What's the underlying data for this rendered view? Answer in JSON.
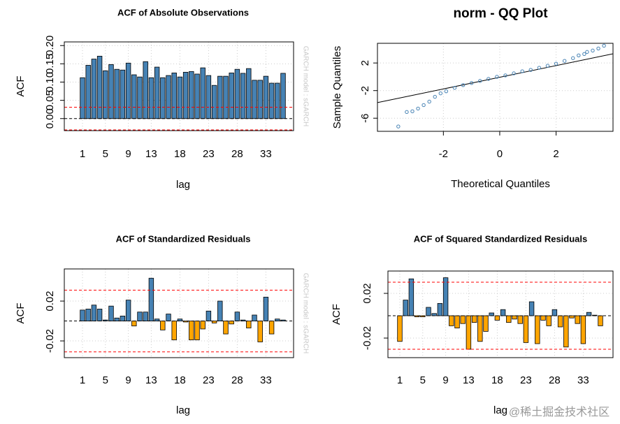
{
  "chart_data": [
    {
      "type": "bar",
      "title": "ACF of Absolute Observations",
      "subtitle": "GARCH model : sGARCH",
      "xlabel": "lag",
      "ylabel": "ACF",
      "categories": [
        "1",
        null,
        null,
        null,
        "5",
        null,
        null,
        null,
        "9",
        null,
        null,
        null,
        "13",
        null,
        null,
        null,
        null,
        "18",
        null,
        null,
        null,
        null,
        "23",
        null,
        null,
        null,
        null,
        "28",
        null,
        null,
        null,
        null,
        "33",
        null,
        null,
        null
      ],
      "values": [
        0.112,
        0.146,
        0.163,
        0.171,
        0.131,
        0.148,
        0.135,
        0.133,
        0.152,
        0.12,
        0.114,
        0.156,
        0.112,
        0.141,
        0.112,
        0.118,
        0.125,
        0.114,
        0.127,
        0.129,
        0.122,
        0.139,
        0.118,
        0.091,
        0.116,
        0.116,
        0.125,
        0.135,
        0.124,
        0.137,
        0.105,
        0.105,
        0.116,
        0.097,
        0.097,
        0.124
      ],
      "color": "#4682b4",
      "negative_color": "#ffa500",
      "conf_limits": [
        0.031,
        -0.031
      ],
      "conf_color": "#ff0000",
      "ylim": [
        -0.033,
        0.21
      ],
      "yticks": [
        {
          "value": 0,
          "label": "0.00"
        },
        0.05,
        {
          "value": 0.1,
          "label": "0.10"
        },
        0.15,
        {
          "value": 0.2,
          "label": "0.20"
        }
      ],
      "grid": true
    },
    {
      "type": "scatter",
      "title": "norm - QQ Plot",
      "xlabel": "Theoretical Quantiles",
      "ylabel": "Sample Quantiles",
      "x": [
        -3.6,
        -3.3,
        -3.1,
        -2.9,
        -2.7,
        -2.5,
        -2.3,
        -2.1,
        -1.9,
        -1.6,
        -1.3,
        -1,
        -0.7,
        -0.4,
        -0.1,
        0.2,
        0.5,
        0.8,
        1.1,
        1.4,
        1.7,
        2,
        2.3,
        2.6,
        2.8,
        3,
        3.1,
        3.3,
        3.5,
        3.7
      ],
      "y": [
        -7.2,
        -5.1,
        -5,
        -4.6,
        -4.1,
        -3.6,
        -2.9,
        -2.4,
        -2.1,
        -1.6,
        -1.2,
        -0.9,
        -0.6,
        -0.3,
        0,
        0.2,
        0.5,
        0.8,
        1,
        1.3,
        1.6,
        1.9,
        2.3,
        2.7,
        3.1,
        3.3,
        3.6,
        3.8,
        4.1,
        4.5
      ],
      "color": "#4682b4",
      "reference_line": {
        "x": [
          -4.34,
          4.02
        ],
        "y": [
          -3.74,
          3.33
        ]
      },
      "xlim": [
        -4.34,
        4.02
      ],
      "ylim": [
        -7.9,
        4.85
      ],
      "xticks": [
        -2,
        0,
        2
      ],
      "yticks": [
        -6,
        -2,
        2
      ],
      "grid": true
    },
    {
      "type": "bar",
      "title": "ACF of Standardized Residuals",
      "subtitle": "GARCH model : sGARCH",
      "xlabel": "lag",
      "ylabel": "ACF",
      "categories": [
        "1",
        null,
        null,
        null,
        "5",
        null,
        null,
        null,
        "9",
        null,
        null,
        null,
        "13",
        null,
        null,
        null,
        null,
        "18",
        null,
        null,
        null,
        null,
        "23",
        null,
        null,
        null,
        null,
        "28",
        null,
        null,
        null,
        null,
        "33",
        null,
        null,
        null
      ],
      "values": [
        0.011,
        0.012,
        0.016,
        0.012,
        0.001,
        0.015,
        0.003,
        0.005,
        0.021,
        -0.005,
        0.009,
        0.009,
        0.043,
        0.002,
        -0.009,
        0.007,
        -0.019,
        0.002,
        -0.001,
        -0.019,
        -0.019,
        -0.008,
        0.01,
        -0.002,
        0.02,
        -0.013,
        -0.003,
        0.009,
        0.001,
        -0.007,
        0.006,
        -0.021,
        0.024,
        -0.013,
        0.002,
        0.001
      ],
      "color": "#4682b4",
      "negative_color": "#ffa500",
      "conf_limits": [
        0.031,
        -0.031
      ],
      "conf_color": "#ff0000",
      "ylim": [
        -0.0368,
        0.0523
      ],
      "yticks": [
        -0.02,
        0.02
      ],
      "grid": true
    },
    {
      "type": "bar",
      "title": "ACF of Squared Standardized Residuals",
      "xlabel": "lag",
      "ylabel": "ACF",
      "categories": [
        "1",
        null,
        null,
        null,
        "5",
        null,
        null,
        null,
        "9",
        null,
        null,
        null,
        "13",
        null,
        null,
        null,
        null,
        "18",
        null,
        null,
        null,
        null,
        "23",
        null,
        null,
        null,
        null,
        "28",
        null,
        null,
        null,
        null,
        "33",
        null,
        null,
        null
      ],
      "values": [
        -0.023,
        0.014,
        0.033,
        -0.001,
        -0.001,
        0.0075,
        0.002,
        0.011,
        0.034,
        -0.009,
        -0.011,
        -0.007,
        -0.03,
        -0.006,
        -0.023,
        -0.014,
        0.0025,
        -0.004,
        0.0055,
        -0.006,
        -0.003,
        -0.007,
        -0.024,
        0.0125,
        -0.025,
        -0.004,
        -0.009,
        0.0055,
        -0.01,
        -0.028,
        -0.002,
        -0.007,
        -0.025,
        0.003,
        0.0005,
        -0.009
      ],
      "color": "#4682b4",
      "negative_color": "#ffa500",
      "conf_limits": [
        0.03,
        -0.03
      ],
      "conf_color": "#ff0000",
      "ylim": [
        -0.0375,
        0.04
      ],
      "yticks": [
        -0.02,
        0.02
      ],
      "grid": true
    }
  ],
  "watermark": "@稀土掘金技术社区"
}
